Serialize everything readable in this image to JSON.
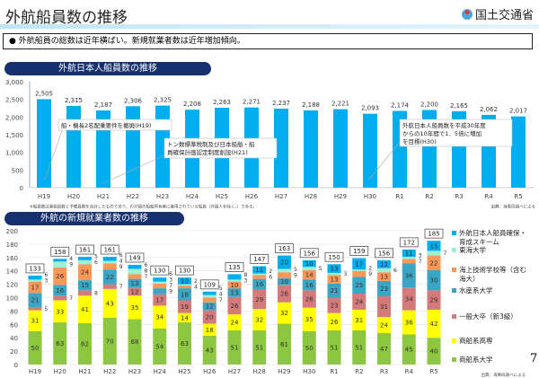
{
  "header": {
    "title": "外航船員数の推移",
    "logo_text": "国土交通省",
    "summary": "外航船員の総数は近年横ばい。新規就業者数は近年増加傾向。"
  },
  "chart_data": [
    {
      "type": "bar",
      "title": "外航日本人船員数の推移",
      "categories": [
        "H19",
        "H20",
        "H21",
        "H22",
        "H23",
        "H24",
        "H25",
        "H26",
        "H27",
        "H28",
        "H29",
        "H30",
        "R1",
        "R2",
        "R3",
        "R4",
        "R5"
      ],
      "values": [
        2505,
        2315,
        2187,
        2306,
        2325,
        2208,
        2263,
        2271,
        2237,
        2188,
        2221,
        2093,
        2174,
        2200,
        2165,
        2062,
        2017
      ],
      "ylim": [
        0,
        3000
      ],
      "yticks": [
        0,
        500,
        1000,
        1500,
        2000,
        2500,
        3000
      ],
      "grid": false,
      "color": "#00aeef",
      "annotations": [
        "船・機長2名配乗要件を撤廃(H19)",
        "トン数標準税制及び日本船舶・船員確保計画認定制度創設(H21)",
        "外航日本人船員数を平成30年度からの10年間で1．5倍に増加を目標(H30)"
      ],
      "footnote": "※船員数は乗組員数と予備員数を合計したものであり、わが国の船舶所有者に雇用されている船員（外国人を除く。）である。",
      "source": "出典：海事局調べによる"
    },
    {
      "type": "stacked-bar",
      "title": "外航の新規就業者数の推移",
      "categories": [
        "H19",
        "H20",
        "H21",
        "H22",
        "H23",
        "H24",
        "H25",
        "H26",
        "H27",
        "H28",
        "H29",
        "H30",
        "R1",
        "R2",
        "R3",
        "R4",
        "R5"
      ],
      "ylim": [
        0,
        200
      ],
      "yticks": [
        0,
        20,
        40,
        60,
        80,
        100,
        120,
        140,
        160,
        180,
        200
      ],
      "grid": true,
      "legend": "right",
      "totals": [
        133,
        158,
        161,
        161,
        149,
        130,
        130,
        109,
        135,
        147,
        163,
        156,
        150,
        159,
        156,
        172,
        185
      ],
      "series": [
        {
          "name": "商船系大学",
          "color": "#8dc63f",
          "values": [
            50,
            63,
            62,
            70,
            68,
            54,
            63,
            43,
            51,
            51,
            61,
            50,
            51,
            51,
            47,
            45,
            40
          ]
        },
        {
          "name": "商船系高専",
          "color": "#ffff00",
          "values": [
            31,
            33,
            41,
            43,
            35,
            34,
            14,
            18,
            24,
            32,
            32,
            35,
            26,
            31,
            24,
            36,
            42
          ]
        },
        {
          "name": "一般大卒（新3級）",
          "color": "#d47a7a",
          "values": [
            5,
            7,
            8,
            7,
            12,
            17,
            19,
            20,
            26,
            29,
            26,
            26,
            23,
            24,
            31,
            34,
            29
          ]
        },
        {
          "name": "水産系大学",
          "color": "#3ba6c4",
          "values": [
            21,
            16,
            15,
            22,
            13,
            9,
            18,
            12,
            13,
            16,
            10,
            16,
            21,
            25,
            23,
            36,
            30
          ]
        },
        {
          "name": "海上技術学校等（含む海大）",
          "color": "#f7975a",
          "values": [
            17,
            26,
            24,
            9,
            7,
            7,
            4,
            7,
            10,
            6,
            9,
            14,
            13,
            9,
            13,
            7,
            22
          ]
        },
        {
          "name": "東海大学",
          "color": "#9df0d0",
          "values": [
            3,
            9,
            6,
            4,
            8,
            3,
            2,
            4,
            3,
            2,
            5,
            5,
            3,
            2,
            6,
            3,
            7
          ]
        },
        {
          "name": "外航日本人船員確保・育成スキーム",
          "color": "#00aeef",
          "values": [
            6,
            4,
            5,
            6,
            6,
            6,
            10,
            5,
            8,
            11,
            20,
            10,
            13,
            17,
            12,
            11,
            15
          ]
        }
      ],
      "source": "出典：海事局調べによる",
      "page_number": "7"
    }
  ]
}
